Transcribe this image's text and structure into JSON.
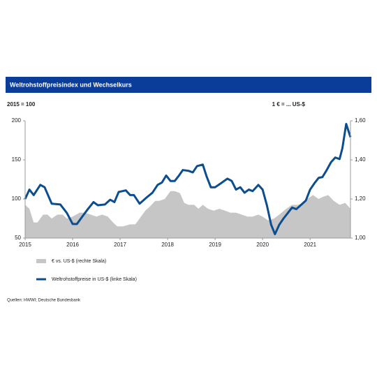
{
  "chart_data": {
    "type": "line",
    "title": "Weltrohstoffpreisindex und Wechselkurs",
    "left_axis_label": "2015 = 100",
    "right_axis_label": "1 € = ... US-$",
    "source": "Quellen: HWWI; Deutsche Bundesbank",
    "xlim": [
      2015,
      2021.85
    ],
    "xticks": [
      2015,
      2016,
      2017,
      2018,
      2019,
      2020,
      2021
    ],
    "ylim": [
      50,
      200
    ],
    "yticks": [
      50,
      100,
      150,
      200
    ],
    "y2lim": [
      1.0,
      1.6
    ],
    "y2ticks": [
      {
        "value": 1.0,
        "label": "1,00"
      },
      {
        "value": 1.2,
        "label": "1,20"
      },
      {
        "value": 1.4,
        "label": "1,40"
      },
      {
        "value": 1.6,
        "label": "1,60"
      }
    ],
    "series": [
      {
        "name": "€ vs. US-$ (rechte Skala)",
        "type": "area",
        "axis": "y2",
        "color": "#c6c6c6",
        "x": [
          2015.0,
          2015.09,
          2015.18,
          2015.26,
          2015.38,
          2015.47,
          2015.56,
          2015.68,
          2015.79,
          2015.88,
          2016.0,
          2016.15,
          2016.26,
          2016.38,
          2016.5,
          2016.62,
          2016.74,
          2016.85,
          2016.94,
          2017.06,
          2017.21,
          2017.32,
          2017.41,
          2017.53,
          2017.62,
          2017.74,
          2017.82,
          2017.94,
          2018.06,
          2018.15,
          2018.26,
          2018.35,
          2018.44,
          2018.56,
          2018.65,
          2018.74,
          2018.85,
          2018.97,
          2019.09,
          2019.21,
          2019.32,
          2019.44,
          2019.56,
          2019.68,
          2019.79,
          2019.91,
          2020.0,
          2020.12,
          2020.24,
          2020.35,
          2020.5,
          2020.62,
          2020.74,
          2020.85,
          2020.94,
          2021.06,
          2021.18,
          2021.26,
          2021.38,
          2021.5,
          2021.62,
          2021.74,
          2021.85
        ],
        "values": [
          1.17,
          1.15,
          1.08,
          1.08,
          1.12,
          1.12,
          1.1,
          1.12,
          1.12,
          1.1,
          1.11,
          1.13,
          1.13,
          1.12,
          1.11,
          1.12,
          1.11,
          1.08,
          1.06,
          1.06,
          1.07,
          1.07,
          1.1,
          1.14,
          1.16,
          1.19,
          1.19,
          1.2,
          1.24,
          1.24,
          1.23,
          1.18,
          1.17,
          1.17,
          1.15,
          1.17,
          1.15,
          1.14,
          1.15,
          1.14,
          1.13,
          1.13,
          1.12,
          1.11,
          1.11,
          1.12,
          1.11,
          1.09,
          1.1,
          1.12,
          1.15,
          1.17,
          1.17,
          1.18,
          1.2,
          1.22,
          1.2,
          1.21,
          1.22,
          1.19,
          1.17,
          1.18,
          1.15
        ]
      },
      {
        "name": "Weltrohstoffpreise in US-$ (linke Skala)",
        "type": "line",
        "axis": "y",
        "color": "#0b4d8f",
        "x": [
          2015.0,
          2015.09,
          2015.18,
          2015.32,
          2015.41,
          2015.56,
          2015.74,
          2015.88,
          2016.0,
          2016.09,
          2016.21,
          2016.32,
          2016.44,
          2016.53,
          2016.68,
          2016.79,
          2016.88,
          2016.97,
          2017.12,
          2017.21,
          2017.29,
          2017.41,
          2017.56,
          2017.68,
          2017.79,
          2017.88,
          2017.97,
          2018.06,
          2018.15,
          2018.24,
          2018.32,
          2018.44,
          2018.53,
          2018.62,
          2018.74,
          2018.82,
          2018.91,
          2019.0,
          2019.12,
          2019.26,
          2019.35,
          2019.44,
          2019.53,
          2019.62,
          2019.71,
          2019.79,
          2019.91,
          2020.0,
          2020.09,
          2020.18,
          2020.26,
          2020.35,
          2020.44,
          2020.53,
          2020.62,
          2020.71,
          2020.82,
          2020.91,
          2021.0,
          2021.09,
          2021.18,
          2021.26,
          2021.35,
          2021.44,
          2021.53,
          2021.62,
          2021.68,
          2021.76,
          2021.85
        ],
        "values": [
          100,
          112,
          105,
          118,
          115,
          94,
          93,
          82,
          68,
          68,
          78,
          87,
          96,
          92,
          93,
          99,
          96,
          109,
          111,
          105,
          105,
          94,
          102,
          108,
          118,
          121,
          130,
          123,
          123,
          130,
          137,
          136,
          134,
          142,
          144,
          129,
          115,
          115,
          120,
          126,
          123,
          112,
          115,
          108,
          112,
          110,
          118,
          112,
          92,
          67,
          55,
          67,
          75,
          82,
          89,
          87,
          93,
          98,
          112,
          120,
          127,
          128,
          137,
          147,
          153,
          151,
          165,
          196,
          179
        ]
      }
    ]
  }
}
